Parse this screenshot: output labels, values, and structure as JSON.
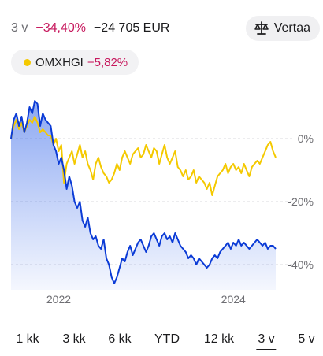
{
  "header": {
    "period": "3 v",
    "change_pct": "−34,40%",
    "change_amount": "−24 705 EUR",
    "compare_label": "Vertaa"
  },
  "index_chip": {
    "name": "OMXHGI",
    "change_pct": "−5,82%",
    "dot_color": "#f4c900"
  },
  "chart_data": {
    "type": "line",
    "x_tick_labels": [
      "2022",
      "2024"
    ],
    "y_tick_labels": [
      "0%",
      "-20%",
      "-40%"
    ],
    "y_ticks": [
      0,
      -20,
      -40
    ],
    "ylim": [
      -48,
      14
    ],
    "x_range": [
      "2021-05",
      "2024-05"
    ],
    "grid": true,
    "series": [
      {
        "color": "#0b3bd6",
        "area": true,
        "x": [
          0,
          0.01,
          0.02,
          0.03,
          0.04,
          0.05,
          0.06,
          0.07,
          0.08,
          0.09,
          0.1,
          0.11,
          0.12,
          0.13,
          0.14,
          0.15,
          0.16,
          0.17,
          0.18,
          0.19,
          0.2,
          0.21,
          0.22,
          0.23,
          0.24,
          0.25,
          0.26,
          0.27,
          0.28,
          0.29,
          0.3,
          0.31,
          0.32,
          0.33,
          0.34,
          0.35,
          0.36,
          0.37,
          0.38,
          0.39,
          0.4,
          0.41,
          0.42,
          0.43,
          0.44,
          0.45,
          0.46,
          0.47,
          0.48,
          0.49,
          0.5,
          0.51,
          0.52,
          0.53,
          0.54,
          0.55,
          0.56,
          0.57,
          0.58,
          0.59,
          0.6,
          0.61,
          0.62,
          0.63,
          0.64,
          0.65,
          0.66,
          0.67,
          0.68,
          0.69,
          0.7,
          0.71,
          0.72,
          0.73,
          0.74,
          0.75,
          0.76,
          0.77,
          0.78,
          0.79,
          0.8,
          0.81,
          0.82,
          0.83,
          0.84,
          0.85,
          0.86,
          0.87,
          0.88,
          0.89,
          0.9,
          0.91,
          0.92,
          0.93,
          0.94,
          0.95,
          0.96,
          0.97,
          0.98,
          0.99,
          1
        ],
        "values": [
          0,
          6,
          8,
          4,
          7,
          2,
          5,
          10,
          8,
          12,
          11,
          4,
          8,
          6,
          5,
          4,
          -2,
          -4,
          -8,
          -6,
          -10,
          -16,
          -12,
          -15,
          -20,
          -22,
          -20,
          -26,
          -28,
          -25,
          -30,
          -32,
          -31,
          -34,
          -35,
          -32,
          -38,
          -40,
          -44,
          -46,
          -44,
          -41,
          -38,
          -39,
          -36,
          -34,
          -37,
          -35,
          -33,
          -32,
          -34,
          -36,
          -34,
          -31,
          -30,
          -32,
          -34,
          -31,
          -30,
          -32,
          -31,
          -33,
          -30,
          -32,
          -34,
          -35,
          -36,
          -38,
          -37,
          -38,
          -40,
          -38,
          -39,
          -40,
          -41,
          -40,
          -38,
          -37,
          -38,
          -36,
          -35,
          -34,
          -33,
          -35,
          -33,
          -34,
          -32,
          -34,
          -33,
          -34,
          -35,
          -34,
          -33,
          -32,
          -33,
          -34,
          -33,
          -35,
          -34,
          -34,
          -35
        ]
      },
      {
        "color": "#f4c900",
        "area": false,
        "x": [
          0,
          0.01,
          0.02,
          0.03,
          0.04,
          0.05,
          0.06,
          0.07,
          0.08,
          0.09,
          0.1,
          0.11,
          0.12,
          0.13,
          0.14,
          0.15,
          0.16,
          0.17,
          0.18,
          0.19,
          0.2,
          0.21,
          0.22,
          0.23,
          0.24,
          0.25,
          0.26,
          0.27,
          0.28,
          0.29,
          0.3,
          0.31,
          0.32,
          0.33,
          0.34,
          0.35,
          0.36,
          0.37,
          0.38,
          0.39,
          0.4,
          0.41,
          0.42,
          0.43,
          0.44,
          0.45,
          0.46,
          0.47,
          0.48,
          0.49,
          0.5,
          0.51,
          0.52,
          0.53,
          0.54,
          0.55,
          0.56,
          0.57,
          0.58,
          0.59,
          0.6,
          0.61,
          0.62,
          0.63,
          0.64,
          0.65,
          0.66,
          0.67,
          0.68,
          0.69,
          0.7,
          0.71,
          0.72,
          0.73,
          0.74,
          0.75,
          0.76,
          0.77,
          0.78,
          0.79,
          0.8,
          0.81,
          0.82,
          0.83,
          0.84,
          0.85,
          0.86,
          0.87,
          0.88,
          0.89,
          0.9,
          0.91,
          0.92,
          0.93,
          0.94,
          0.95,
          0.96,
          0.97,
          0.98,
          0.99,
          1
        ],
        "values": [
          0,
          4,
          6,
          3,
          5,
          2,
          4,
          6,
          5,
          7,
          5,
          2,
          3,
          2,
          1,
          1,
          -2,
          0,
          -4,
          -2,
          -14,
          -8,
          -6,
          -4,
          -8,
          -5,
          -2,
          -6,
          -4,
          -8,
          -10,
          -13,
          -8,
          -6,
          -9,
          -11,
          -12,
          -14,
          -13,
          -11,
          -8,
          -10,
          -6,
          -4,
          -6,
          -8,
          -5,
          -4,
          -3,
          -6,
          -5,
          -2,
          -4,
          -6,
          -3,
          -4,
          -8,
          -5,
          -2,
          -6,
          -8,
          -6,
          -4,
          -9,
          -10,
          -12,
          -10,
          -13,
          -12,
          -10,
          -14,
          -12,
          -13,
          -14,
          -16,
          -14,
          -18,
          -15,
          -12,
          -11,
          -10,
          -8,
          -11,
          -9,
          -8,
          -10,
          -9,
          -11,
          -8,
          -10,
          -12,
          -9,
          -8,
          -7,
          -8,
          -6,
          -4,
          -2,
          -1,
          -4,
          -6
        ]
      }
    ]
  },
  "ranges": [
    {
      "label": "1 kk",
      "active": false
    },
    {
      "label": "3 kk",
      "active": false
    },
    {
      "label": "6 kk",
      "active": false
    },
    {
      "label": "YTD",
      "active": false
    },
    {
      "label": "12 kk",
      "active": false
    },
    {
      "label": "3 v",
      "active": true
    },
    {
      "label": "5 v",
      "active": false
    }
  ]
}
